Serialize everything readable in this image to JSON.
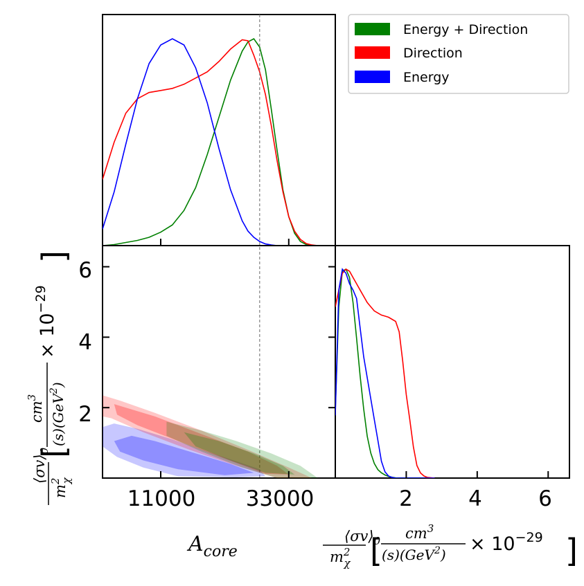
{
  "chart_data": [
    {
      "type": "line",
      "panel": "marginal-acore",
      "xlim": [
        1000,
        41000
      ],
      "x": [
        1000,
        3000,
        5000,
        7000,
        9000,
        11000,
        13000,
        15000,
        17000,
        19000,
        21000,
        23000,
        25000,
        26000,
        27000,
        28000,
        29000,
        30000,
        31000,
        32000,
        33000,
        34000,
        35000,
        36000,
        37000,
        38000,
        40000
      ],
      "series": [
        {
          "name": "Energy + Direction",
          "color": "#008000",
          "values": [
            0.0,
            0.005,
            0.015,
            0.025,
            0.04,
            0.065,
            0.1,
            0.17,
            0.28,
            0.44,
            0.62,
            0.8,
            0.94,
            0.985,
            1.0,
            0.96,
            0.85,
            0.66,
            0.46,
            0.27,
            0.14,
            0.06,
            0.02,
            0.005,
            0.0,
            0.0,
            0.0
          ]
        },
        {
          "name": "Direction",
          "color": "#ff0000",
          "values": [
            0.32,
            0.5,
            0.64,
            0.71,
            0.74,
            0.75,
            0.76,
            0.78,
            0.81,
            0.84,
            0.89,
            0.95,
            0.995,
            0.99,
            0.92,
            0.84,
            0.73,
            0.58,
            0.41,
            0.26,
            0.14,
            0.07,
            0.03,
            0.01,
            0.003,
            0.0,
            0.0
          ]
        },
        {
          "name": "Energy",
          "color": "#0000ff",
          "values": [
            0.08,
            0.26,
            0.49,
            0.71,
            0.88,
            0.97,
            1.0,
            0.97,
            0.86,
            0.69,
            0.47,
            0.27,
            0.12,
            0.07,
            0.04,
            0.02,
            0.008,
            0.003,
            0.0,
            0.0,
            0.0,
            0.0,
            0.0,
            0.0,
            0.0,
            0.0,
            0.0
          ]
        }
      ],
      "vline": 28000
    },
    {
      "type": "area",
      "panel": "joint-acore-sigmav",
      "xlim": [
        1000,
        41000
      ],
      "ylim": [
        0,
        6.6
      ],
      "xticks": [
        "11000",
        "33000"
      ],
      "yticks": [
        "2",
        "4",
        "6"
      ],
      "xlabel": "A_core",
      "ylabel": "⟨σv⟩₀ / m²χ [cm³/(s)(GeV²) × 10⁻²⁹]",
      "vline": 28000,
      "regions": [
        {
          "name": "Energy 95%",
          "color": "#0000ff",
          "points": [
            [
              1000,
              1.45
            ],
            [
              3000,
              1.55
            ],
            [
              7000,
              1.4
            ],
            [
              13000,
              1.1
            ],
            [
              19000,
              0.75
            ],
            [
              25000,
              0.42
            ],
            [
              28000,
              0.25
            ],
            [
              29000,
              0.05
            ],
            [
              24000,
              0.02
            ],
            [
              14000,
              0.05
            ],
            [
              8000,
              0.3
            ],
            [
              3500,
              0.6
            ],
            [
              1000,
              0.9
            ]
          ]
        },
        {
          "name": "Energy 68%",
          "color": "#0000ff",
          "points": [
            [
              3000,
              1.05
            ],
            [
              6000,
              1.2
            ],
            [
              10000,
              1.05
            ],
            [
              16000,
              0.75
            ],
            [
              23000,
              0.4
            ],
            [
              27000,
              0.15
            ],
            [
              22000,
              0.08
            ],
            [
              14000,
              0.25
            ],
            [
              8000,
              0.5
            ],
            [
              4000,
              0.75
            ]
          ]
        },
        {
          "name": "Direction 95%",
          "color": "#ff0000",
          "points": [
            [
              1000,
              2.35
            ],
            [
              4000,
              2.2
            ],
            [
              10000,
              1.85
            ],
            [
              18000,
              1.35
            ],
            [
              26000,
              0.8
            ],
            [
              33000,
              0.3
            ],
            [
              37000,
              0.0
            ],
            [
              31000,
              0.0
            ],
            [
              24000,
              0.35
            ],
            [
              16000,
              0.8
            ],
            [
              8000,
              1.3
            ],
            [
              2500,
              1.7
            ],
            [
              1000,
              1.75
            ]
          ]
        },
        {
          "name": "Direction 68%",
          "color": "#ff0000",
          "points": [
            [
              3000,
              2.1
            ],
            [
              10000,
              1.75
            ],
            [
              18000,
              1.25
            ],
            [
              26000,
              0.75
            ],
            [
              31000,
              0.35
            ],
            [
              33000,
              0.1
            ],
            [
              29000,
              0.12
            ],
            [
              22000,
              0.55
            ],
            [
              14000,
              1.05
            ],
            [
              7000,
              1.5
            ],
            [
              3500,
              1.8
            ]
          ]
        },
        {
          "name": "Energy + Direction 95%",
          "color": "#008000",
          "points": [
            [
              12000,
              1.6
            ],
            [
              18000,
              1.35
            ],
            [
              24000,
              1.05
            ],
            [
              30000,
              0.7
            ],
            [
              35000,
              0.35
            ],
            [
              38000,
              0.0
            ],
            [
              31000,
              0.0
            ],
            [
              25000,
              0.3
            ],
            [
              18000,
              0.75
            ],
            [
              12000,
              1.2
            ]
          ]
        },
        {
          "name": "Energy + Direction 68%",
          "color": "#008000",
          "points": [
            [
              15000,
              1.3
            ],
            [
              21000,
              1.05
            ],
            [
              27000,
              0.7
            ],
            [
              32000,
              0.35
            ],
            [
              34000,
              0.1
            ],
            [
              29000,
              0.15
            ],
            [
              23000,
              0.5
            ],
            [
              17000,
              0.9
            ]
          ]
        }
      ]
    },
    {
      "type": "line",
      "panel": "marginal-sigmav",
      "xlim": [
        0,
        6.6
      ],
      "xticks": [
        "2",
        "4",
        "6"
      ],
      "xlabel": "⟨σv⟩₀ / m²χ [cm³/(s)(GeV²) × 10⁻²⁹]",
      "x": [
        0.0,
        0.1,
        0.2,
        0.3,
        0.4,
        0.5,
        0.6,
        0.7,
        0.8,
        0.9,
        1.0,
        1.1,
        1.2,
        1.3,
        1.4,
        1.5,
        1.6,
        1.7,
        1.8,
        1.9,
        2.0,
        2.1,
        2.2,
        2.3,
        2.4,
        2.5,
        2.6,
        2.8
      ],
      "series": [
        {
          "name": "Energy + Direction",
          "color": "#008000",
          "values": [
            0.32,
            0.82,
            0.99,
            1.0,
            0.96,
            0.84,
            0.67,
            0.49,
            0.33,
            0.2,
            0.12,
            0.07,
            0.04,
            0.025,
            0.015,
            0.008,
            0.004,
            0.001,
            0.0,
            0.0,
            0.0,
            0.0,
            0.0,
            0.0,
            0.0,
            0.0,
            0.0,
            0.0
          ]
        },
        {
          "name": "Direction",
          "color": "#ff0000",
          "values": [
            0.82,
            0.9,
            0.98,
            1.0,
            0.99,
            0.96,
            0.93,
            0.9,
            0.87,
            0.84,
            0.82,
            0.8,
            0.79,
            0.78,
            0.775,
            0.77,
            0.76,
            0.75,
            0.7,
            0.56,
            0.4,
            0.28,
            0.15,
            0.06,
            0.025,
            0.01,
            0.003,
            0.0
          ]
        },
        {
          "name": "Energy",
          "color": "#0000ff",
          "values": [
            0.3,
            0.9,
            1.0,
            0.98,
            0.93,
            0.9,
            0.86,
            0.72,
            0.58,
            0.48,
            0.38,
            0.28,
            0.18,
            0.08,
            0.03,
            0.01,
            0.003,
            0.0,
            0.0,
            0.0,
            0.0,
            0.0,
            0.0,
            0.0,
            0.0,
            0.0,
            0.0,
            0.0
          ]
        }
      ]
    }
  ],
  "legend": {
    "entries": [
      {
        "label": "Energy + Direction",
        "color": "#008000"
      },
      {
        "label": "Direction",
        "color": "#ff0000"
      },
      {
        "label": "Energy",
        "color": "#0000ff"
      }
    ]
  },
  "labels": {
    "x_joint_main": "A",
    "x_joint_sub": "core",
    "sv_sigma": "⟨σv⟩",
    "sv_sigma_sub": "0",
    "sv_m": "m",
    "sv_m_sup": "2",
    "sv_m_sub": "χ",
    "sv_cm": "cm",
    "sv_cm_sup": "3",
    "sv_den": "(s)(GeV",
    "sv_den_sup": "2",
    "sv_den_close": ")",
    "sv_times": "× 10",
    "sv_exp": "−29",
    "bracket_open": "[",
    "bracket_close": "]"
  }
}
